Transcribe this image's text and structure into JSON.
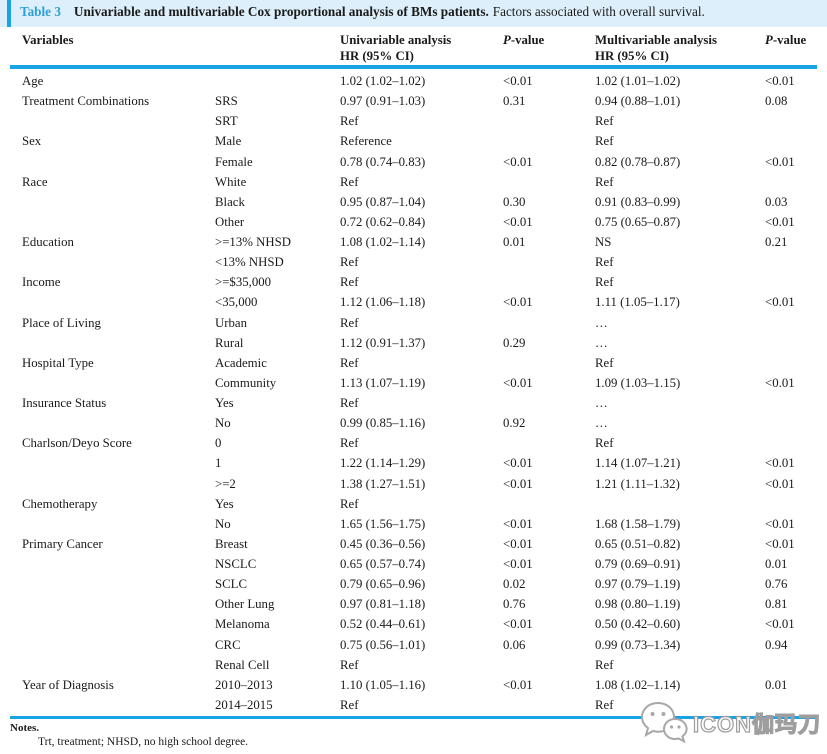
{
  "colors": {
    "accent_blue": "#18a3e6",
    "caption_background": "#ddeffa",
    "caption_label_blue": "#2d9fd6",
    "watermark_gray": "#9e9e9e"
  },
  "caption": {
    "label": "Table 3",
    "title_bold": "Univariable and multivariable Cox proportional analysis of BMs patients.",
    "title_rest": "Factors associated with overall survival."
  },
  "header": {
    "col_variables": "Variables",
    "col_uni_line1": "Univariable analysis",
    "col_uni_line2": "HR (95% CI)",
    "col_p_italic": "P",
    "col_p_rest": "-value",
    "col_multi_line1": "Multivariable analysis",
    "col_multi_line2": "HR (95% CI)"
  },
  "table": {
    "rows": [
      {
        "variable": "Age",
        "category": "",
        "uni_hr": "1.02 (1.02–1.02)",
        "uni_p": "<0.01",
        "multi_hr": "1.02 (1.01–1.02)",
        "multi_p": "<0.01"
      },
      {
        "variable": "Treatment Combinations",
        "category": "SRS",
        "uni_hr": "0.97 (0.91–1.03)",
        "uni_p": "0.31",
        "multi_hr": "0.94 (0.88–1.01)",
        "multi_p": "0.08"
      },
      {
        "variable": "",
        "category": "SRT",
        "uni_hr": "Ref",
        "uni_p": "",
        "multi_hr": "Ref",
        "multi_p": ""
      },
      {
        "variable": "Sex",
        "category": "Male",
        "uni_hr": "Reference",
        "uni_p": "",
        "multi_hr": "Ref",
        "multi_p": ""
      },
      {
        "variable": "",
        "category": "Female",
        "uni_hr": "0.78 (0.74–0.83)",
        "uni_p": "<0.01",
        "multi_hr": "0.82 (0.78–0.87)",
        "multi_p": "<0.01"
      },
      {
        "variable": "Race",
        "category": "White",
        "uni_hr": "Ref",
        "uni_p": "",
        "multi_hr": "Ref",
        "multi_p": ""
      },
      {
        "variable": "",
        "category": "Black",
        "uni_hr": "0.95 (0.87–1.04)",
        "uni_p": "0.30",
        "multi_hr": "0.91 (0.83–0.99)",
        "multi_p": "0.03"
      },
      {
        "variable": "",
        "category": "Other",
        "uni_hr": "0.72 (0.62–0.84)",
        "uni_p": "<0.01",
        "multi_hr": "0.75 (0.65–0.87)",
        "multi_p": "<0.01"
      },
      {
        "variable": "Education",
        "category": ">=13% NHSD",
        "uni_hr": "1.08 (1.02–1.14)",
        "uni_p": "0.01",
        "multi_hr": "NS",
        "multi_p": "0.21"
      },
      {
        "variable": "",
        "category": "<13% NHSD",
        "uni_hr": "Ref",
        "uni_p": "",
        "multi_hr": "Ref",
        "multi_p": ""
      },
      {
        "variable": "Income",
        "category": ">=$35,000",
        "uni_hr": "Ref",
        "uni_p": "",
        "multi_hr": "Ref",
        "multi_p": ""
      },
      {
        "variable": "",
        "category": "<35,000",
        "uni_hr": "1.12 (1.06–1.18)",
        "uni_p": "<0.01",
        "multi_hr": "1.11 (1.05–1.17)",
        "multi_p": "<0.01"
      },
      {
        "variable": "Place of Living",
        "category": "Urban",
        "uni_hr": "Ref",
        "uni_p": "",
        "multi_hr": "…",
        "multi_p": ""
      },
      {
        "variable": "",
        "category": "Rural",
        "uni_hr": "1.12 (0.91–1.37)",
        "uni_p": "0.29",
        "multi_hr": "…",
        "multi_p": ""
      },
      {
        "variable": "Hospital Type",
        "category": "Academic",
        "uni_hr": "Ref",
        "uni_p": "",
        "multi_hr": "Ref",
        "multi_p": ""
      },
      {
        "variable": "",
        "category": "Community",
        "uni_hr": "1.13 (1.07–1.19)",
        "uni_p": "<0.01",
        "multi_hr": "1.09 (1.03–1.15)",
        "multi_p": "<0.01"
      },
      {
        "variable": "Insurance Status",
        "category": "Yes",
        "uni_hr": "Ref",
        "uni_p": "",
        "multi_hr": "…",
        "multi_p": ""
      },
      {
        "variable": "",
        "category": "No",
        "uni_hr": "0.99 (0.85–1.16)",
        "uni_p": "0.92",
        "multi_hr": "…",
        "multi_p": ""
      },
      {
        "variable": "Charlson/Deyo Score",
        "category": "0",
        "uni_hr": "Ref",
        "uni_p": "",
        "multi_hr": "Ref",
        "multi_p": ""
      },
      {
        "variable": "",
        "category": "1",
        "uni_hr": "1.22 (1.14–1.29)",
        "uni_p": "<0.01",
        "multi_hr": "1.14 (1.07–1.21)",
        "multi_p": "<0.01"
      },
      {
        "variable": "",
        "category": ">=2",
        "uni_hr": "1.38 (1.27–1.51)",
        "uni_p": "<0.01",
        "multi_hr": "1.21 (1.11–1.32)",
        "multi_p": "<0.01"
      },
      {
        "variable": "Chemotherapy",
        "category": "Yes",
        "uni_hr": "Ref",
        "uni_p": "",
        "multi_hr": "",
        "multi_p": ""
      },
      {
        "variable": "",
        "category": "No",
        "uni_hr": "1.65 (1.56–1.75)",
        "uni_p": "<0.01",
        "multi_hr": "1.68 (1.58–1.79)",
        "multi_p": "<0.01"
      },
      {
        "variable": "Primary Cancer",
        "category": "Breast",
        "uni_hr": "0.45 (0.36–0.56)",
        "uni_p": "<0.01",
        "multi_hr": "0.65 (0.51–0.82)",
        "multi_p": "<0.01"
      },
      {
        "variable": "",
        "category": "NSCLC",
        "uni_hr": "0.65 (0.57–0.74)",
        "uni_p": "<0.01",
        "multi_hr": "0.79 (0.69–0.91)",
        "multi_p": "0.01"
      },
      {
        "variable": "",
        "category": "SCLC",
        "uni_hr": "0.79 (0.65–0.96)",
        "uni_p": "0.02",
        "multi_hr": "0.97 (0.79–1.19)",
        "multi_p": "0.76"
      },
      {
        "variable": "",
        "category": "Other Lung",
        "uni_hr": "0.97 (0.81–1.18)",
        "uni_p": "0.76",
        "multi_hr": "0.98 (0.80–1.19)",
        "multi_p": "0.81"
      },
      {
        "variable": "",
        "category": "Melanoma",
        "uni_hr": "0.52 (0.44–0.61)",
        "uni_p": "<0.01",
        "multi_hr": "0.50 (0.42–0.60)",
        "multi_p": "<0.01"
      },
      {
        "variable": "",
        "category": "CRC",
        "uni_hr": "0.75 (0.56–1.01)",
        "uni_p": "0.06",
        "multi_hr": "0.99 (0.73–1.34)",
        "multi_p": "0.94"
      },
      {
        "variable": "",
        "category": "Renal Cell",
        "uni_hr": "Ref",
        "uni_p": "",
        "multi_hr": "Ref",
        "multi_p": ""
      },
      {
        "variable": "Year of Diagnosis",
        "category": "2010–2013",
        "uni_hr": "1.10 (1.05–1.16)",
        "uni_p": "<0.01",
        "multi_hr": "1.08 (1.02–1.14)",
        "multi_p": "0.01"
      },
      {
        "variable": "",
        "category": "2014–2015",
        "uni_hr": "Ref",
        "uni_p": "",
        "multi_hr": "Ref",
        "multi_p": ""
      }
    ]
  },
  "notes": {
    "heading": "Notes.",
    "text": "Trt, treatment; NHSD, no high school degree."
  },
  "watermark": {
    "logo_icon": "chat-bubbles-logo",
    "text": "ICON伽玛刀"
  }
}
